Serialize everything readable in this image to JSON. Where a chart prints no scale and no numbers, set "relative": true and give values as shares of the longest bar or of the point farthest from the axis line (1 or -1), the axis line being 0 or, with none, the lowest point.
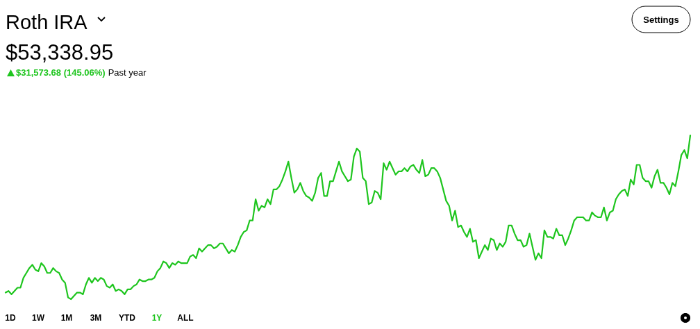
{
  "chart_data": {
    "type": "line",
    "title": "Roth IRA",
    "subtitle": "$53,338.95",
    "annotations": [
      "$31,573.68 (145.06%)",
      "Past year",
      "Settings",
      "1D",
      "1W",
      "1M",
      "3M",
      "YTD",
      "1Y",
      "ALL"
    ],
    "relative": true,
    "marker": "none",
    "line_style": "solid",
    "categories": [
      null,
      null,
      null,
      null,
      null,
      null,
      null,
      null,
      null,
      null,
      null,
      null,
      null,
      null,
      null,
      null,
      null,
      null,
      null,
      null,
      null,
      null,
      null,
      null,
      null,
      null,
      null,
      null,
      null,
      null,
      null,
      null,
      null,
      null,
      null,
      null,
      null,
      null,
      null,
      null,
      null,
      null,
      null,
      null,
      null,
      null,
      null,
      null,
      null,
      null,
      null,
      null,
      null,
      null,
      null,
      null,
      null,
      null,
      null,
      null,
      null,
      null,
      null,
      null,
      null,
      null,
      null,
      null,
      null,
      null,
      null,
      null,
      null,
      null,
      null,
      null,
      null,
      null,
      null,
      null,
      null,
      null,
      null,
      null,
      null,
      null,
      null,
      null,
      null,
      null,
      null,
      null,
      null,
      null,
      null,
      null,
      null,
      null,
      null,
      null,
      null,
      null,
      null,
      null,
      null,
      null,
      null,
      null,
      null,
      null,
      null,
      null,
      null,
      null,
      null,
      null,
      null,
      null,
      null,
      null,
      null,
      null,
      null,
      null,
      null,
      null,
      null,
      null,
      null,
      null,
      null,
      null,
      null,
      null,
      null,
      null,
      null,
      null,
      null,
      null,
      null,
      null,
      null,
      null,
      null,
      null,
      null,
      null,
      null,
      null,
      null,
      null,
      null,
      null,
      null,
      null,
      null,
      null,
      null,
      null,
      null,
      null,
      null,
      null,
      null,
      null,
      null,
      null,
      null,
      null,
      null,
      null,
      null,
      null,
      null,
      null,
      null,
      null,
      null,
      null,
      null,
      null,
      null,
      null,
      null,
      null,
      null,
      null,
      null,
      null,
      null,
      null,
      null,
      null,
      null,
      null,
      null,
      null,
      null,
      null,
      null,
      null,
      null,
      null,
      null,
      null,
      null,
      null,
      null,
      null,
      null,
      null,
      null,
      null,
      null,
      null,
      null,
      null,
      null,
      null,
      null,
      null,
      null,
      null,
      null,
      null,
      null,
      null,
      null,
      null,
      null
    ],
    "series": [
      {
        "color": "#1ec51e",
        "values": [
          0.04,
          0.05,
          0.03,
          0.05,
          0.07,
          0.07,
          0.13,
          0.16,
          0.19,
          0.21,
          0.18,
          0.17,
          0.22,
          0.2,
          0.16,
          0.16,
          0.19,
          0.17,
          0.16,
          0.12,
          0.1,
          0.01,
          0,
          0.02,
          0.04,
          0.04,
          0.03,
          0.09,
          0.13,
          0.1,
          0.13,
          0.11,
          0.13,
          0.12,
          0.08,
          0.07,
          0.09,
          0.05,
          0.06,
          0.05,
          0.03,
          0.06,
          0.06,
          0.08,
          0.09,
          0.12,
          0.11,
          0.11,
          0.12,
          0.12,
          0.13,
          0.17,
          0.19,
          0.23,
          0.22,
          0.19,
          0.22,
          0.21,
          0.23,
          0.22,
          0.22,
          0.22,
          0.26,
          0.27,
          0.25,
          0.31,
          0.29,
          0.31,
          0.33,
          0.33,
          0.31,
          0.32,
          0.34,
          0.34,
          0.31,
          0.28,
          0.3,
          0.29,
          0.33,
          0.38,
          0.41,
          0.42,
          0.48,
          0.48,
          0.61,
          0.54,
          0.57,
          0.56,
          0.61,
          0.58,
          0.67,
          0.67,
          0.69,
          0.73,
          0.78,
          0.84,
          0.74,
          0.65,
          0.67,
          0.71,
          0.66,
          0.63,
          0.62,
          0.6,
          0.65,
          0.74,
          0.77,
          0.63,
          0.63,
          0.72,
          0.72,
          0.78,
          0.84,
          0.78,
          0.75,
          0.72,
          0.73,
          0.87,
          0.92,
          0.9,
          0.74,
          0.72,
          0.58,
          0.59,
          0.66,
          0.65,
          0.61,
          0.83,
          0.79,
          0.84,
          0.8,
          0.76,
          0.78,
          0.78,
          0.8,
          0.78,
          0.81,
          0.82,
          0.79,
          0.77,
          0.85,
          0.75,
          0.76,
          0.8,
          0.8,
          0.78,
          0.74,
          0.67,
          0.6,
          0.57,
          0.48,
          0.54,
          0.44,
          0.45,
          0.41,
          0.38,
          0.43,
          0.35,
          0.36,
          0.25,
          0.29,
          0.33,
          0.3,
          0.37,
          0.36,
          0.3,
          0.34,
          0.32,
          0.35,
          0.45,
          0.45,
          0.4,
          0.36,
          0.36,
          0.32,
          0.33,
          0.4,
          0.32,
          0.24,
          0.28,
          0.25,
          0.42,
          0.38,
          0.38,
          0.37,
          0.43,
          0.39,
          0.39,
          0.33,
          0.37,
          0.42,
          0.48,
          0.5,
          0.5,
          0.5,
          0.48,
          0.48,
          0.53,
          0.51,
          0.5,
          0.5,
          0.56,
          0.48,
          0.53,
          0.54,
          0.61,
          0.64,
          0.66,
          0.67,
          0.63,
          0.73,
          0.7,
          0.82,
          0.82,
          0.74,
          0.72,
          0.72,
          0.68,
          0.75,
          0.79,
          0.71,
          0.71,
          0.68,
          0.64,
          0.71,
          0.69,
          0.78,
          0.88,
          0.91,
          0.86,
          1
        ]
      }
    ]
  }
}
